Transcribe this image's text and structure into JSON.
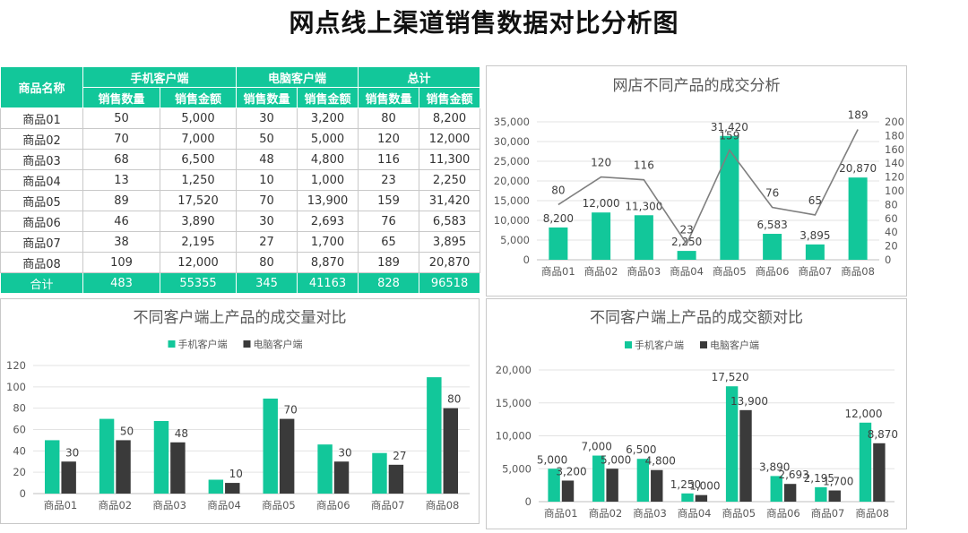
{
  "page_title": "网点线上渠道销售数据对比分析图",
  "colors": {
    "green": "#12c79a",
    "dark": "#3a3a3a",
    "line": "#7f7f7f",
    "grid": "#e3e3e3"
  },
  "table": {
    "header_name": "商品名称",
    "groups": [
      "手机客户端",
      "电脑客户端",
      "总计"
    ],
    "sub_qty": "销售数量",
    "sub_amt": "销售金额",
    "rows": [
      [
        "商品01",
        "50",
        "5,000",
        "30",
        "3,200",
        "80",
        "8,200"
      ],
      [
        "商品02",
        "70",
        "7,000",
        "50",
        "5,000",
        "120",
        "12,000"
      ],
      [
        "商品03",
        "68",
        "6,500",
        "48",
        "4,800",
        "116",
        "11,300"
      ],
      [
        "商品04",
        "13",
        "1,250",
        "10",
        "1,000",
        "23",
        "2,250"
      ],
      [
        "商品05",
        "89",
        "17,520",
        "70",
        "13,900",
        "159",
        "31,420"
      ],
      [
        "商品06",
        "46",
        "3,890",
        "30",
        "2,693",
        "76",
        "6,583"
      ],
      [
        "商品07",
        "38",
        "2,195",
        "27",
        "1,700",
        "65",
        "3,895"
      ],
      [
        "商品08",
        "109",
        "12,000",
        "80",
        "8,870",
        "189",
        "20,870"
      ]
    ],
    "total": [
      "合计",
      "483",
      "55355",
      "345",
      "41163",
      "828",
      "96518"
    ]
  },
  "chart_data": [
    {
      "type": "bar",
      "title": "网店不同产品的成交分析",
      "categories": [
        "商品01",
        "商品02",
        "商品03",
        "商品04",
        "商品05",
        "商品06",
        "商品07",
        "商品08"
      ],
      "series": [
        {
          "type": "bar",
          "axis": "left",
          "values": [
            8200,
            12000,
            11300,
            2250,
            31420,
            6583,
            3895,
            20870
          ],
          "labels": [
            "8,200",
            "12,000",
            "11,300",
            "2,250",
            "31,420",
            "6,583",
            "3,895",
            "20,870"
          ]
        },
        {
          "type": "line",
          "axis": "right",
          "values": [
            80,
            120,
            116,
            23,
            159,
            76,
            65,
            189
          ],
          "labels": [
            "80",
            "120",
            "116",
            "23",
            "159",
            "76",
            "65",
            "189"
          ]
        }
      ],
      "ylim": [
        0,
        35000
      ],
      "yticks": [
        "0",
        "5,000",
        "10,000",
        "15,000",
        "20,000",
        "25,000",
        "30,000",
        "35,000"
      ],
      "y2lim": [
        0,
        200
      ],
      "y2ticks": [
        "0",
        "20",
        "40",
        "60",
        "80",
        "100",
        "120",
        "140",
        "160",
        "180",
        "200"
      ],
      "grid": true
    },
    {
      "type": "bar",
      "title": "不同客户端上产品的成交量对比",
      "categories": [
        "商品01",
        "商品02",
        "商品03",
        "商品04",
        "商品05",
        "商品06",
        "商品07",
        "商品08"
      ],
      "series": [
        {
          "name": "手机客户端",
          "values": [
            50,
            70,
            68,
            13,
            89,
            46,
            38,
            109
          ]
        },
        {
          "name": "电脑客户端",
          "values": [
            30,
            50,
            48,
            10,
            70,
            30,
            27,
            80
          ],
          "labels": [
            "30",
            "50",
            "48",
            "10",
            "70",
            "30",
            "27",
            "80"
          ]
        }
      ],
      "ylim": [
        0,
        120
      ],
      "yticks": [
        "0",
        "20",
        "40",
        "60",
        "80",
        "100",
        "120"
      ],
      "legend": "top-center",
      "grid": true
    },
    {
      "type": "bar",
      "title": "不同客户端上产品的成交额对比",
      "categories": [
        "商品01",
        "商品02",
        "商品03",
        "商品04",
        "商品05",
        "商品06",
        "商品07",
        "商品08"
      ],
      "series": [
        {
          "name": "手机客户端",
          "values": [
            5000,
            7000,
            6500,
            1250,
            17520,
            3890,
            2195,
            12000
          ],
          "labels": [
            "5,000",
            "7,000",
            "6,500",
            "1,250",
            "17,520",
            "3,890",
            "2,195",
            "12,000"
          ]
        },
        {
          "name": "电脑客户端",
          "values": [
            3200,
            5000,
            4800,
            1000,
            13900,
            2693,
            1700,
            8870
          ],
          "labels": [
            "3,200",
            "5,000",
            "4,800",
            "1,000",
            "13,900",
            "2,693",
            "1,700",
            "8,870"
          ]
        }
      ],
      "ylim": [
        0,
        20000
      ],
      "yticks": [
        "0",
        "5,000",
        "10,000",
        "15,000",
        "20,000"
      ],
      "legend": "top-center",
      "grid": true
    }
  ]
}
